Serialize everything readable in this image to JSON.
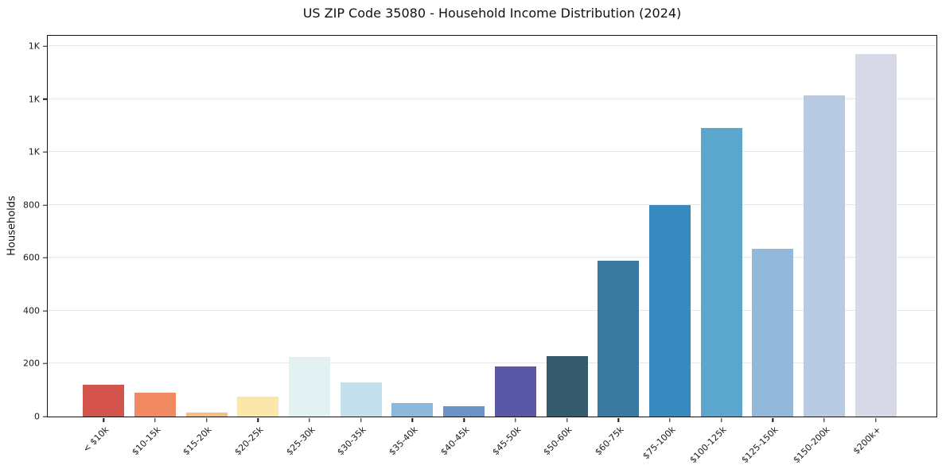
{
  "chart_data": {
    "type": "bar",
    "title": "US ZIP Code 35080 - Household Income Distribution (2024)",
    "ylabel": "Households",
    "xlabel": "",
    "categories": [
      "< $10k",
      "$10-15k",
      "$15-20k",
      "$20-25k",
      "$25-30k",
      "$30-35k",
      "$35-40k",
      "$40-45k",
      "$45-50k",
      "$50-60k",
      "$60-75k",
      "$75-100k",
      "$100-125k",
      "$125-150k",
      "$150-200k",
      "$200k+"
    ],
    "values": [
      120,
      90,
      15,
      75,
      225,
      130,
      50,
      40,
      190,
      228,
      590,
      800,
      1090,
      635,
      1215,
      1370
    ],
    "bar_colors": [
      "#d5534d",
      "#f18a61",
      "#f4bf80",
      "#fbe7a9",
      "#e4f1f3",
      "#c4e0ed",
      "#8db8dc",
      "#6c93c6",
      "#5a57a8",
      "#365a6d",
      "#3a7aa1",
      "#3789c0",
      "#5ba6cc",
      "#92b8da",
      "#b9cbe2",
      "#d8d9e7"
    ],
    "ylim": [
      0,
      1440
    ],
    "yticks": {
      "values": [
        0,
        200,
        400,
        600,
        800,
        1000,
        1200,
        1400
      ],
      "labels": [
        "0",
        "200",
        "400",
        "600",
        "800",
        "1K",
        "1K",
        "1K"
      ]
    },
    "grid": "horizontal",
    "legend": "none",
    "x_tick_rotation": 45
  },
  "colors": {
    "background": "#ffffff",
    "grid": "#e7e7ea",
    "spine": "#151515",
    "text": "#1a1a1a"
  }
}
